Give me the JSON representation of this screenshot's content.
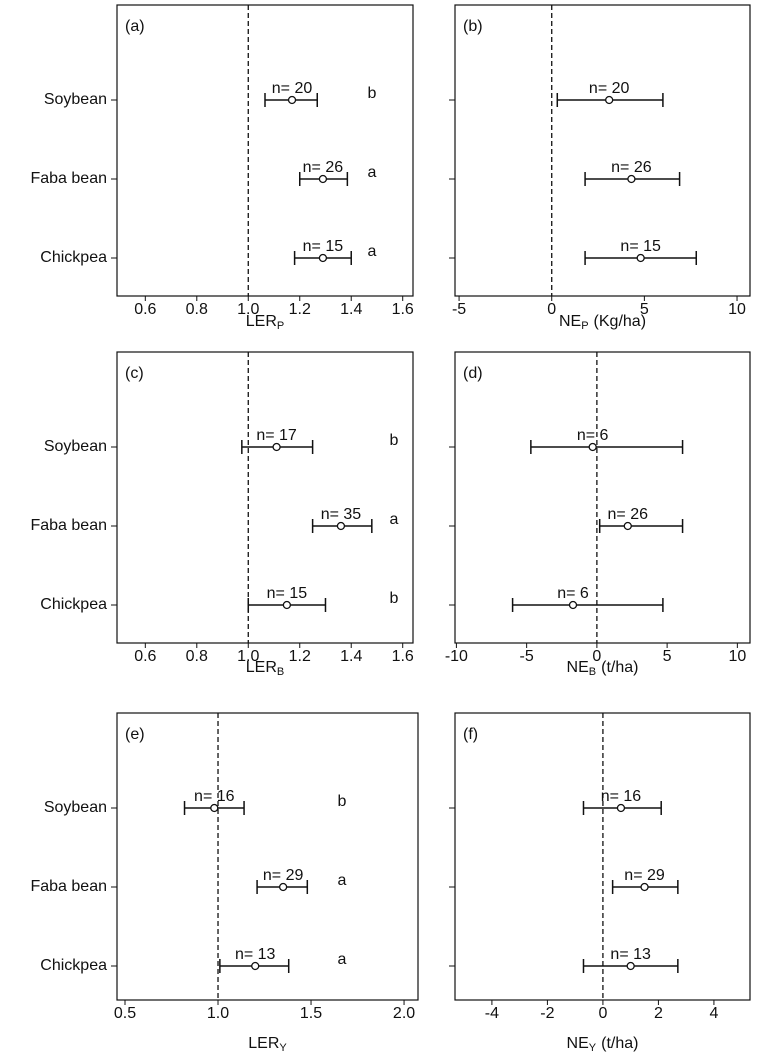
{
  "chart_data": [
    {
      "type": "errorbar",
      "panel_label": "(a)",
      "categories": [
        "Soybean",
        "Faba bean",
        "Chickpea"
      ],
      "values": [
        1.17,
        1.29,
        1.29
      ],
      "lower": [
        1.065,
        1.2,
        1.18
      ],
      "upper": [
        1.268,
        1.385,
        1.4
      ],
      "n_labels": [
        "n= 20",
        "n= 26",
        "n= 15"
      ],
      "letters": [
        "b",
        "a",
        "a"
      ],
      "xlabel": "LER",
      "xlabel_sub": "P",
      "xlim": [
        0.49,
        1.64
      ],
      "xticks": [
        0.6,
        0.8,
        {
          "value": 1,
          "label": "1.0"
        },
        1.2,
        1.4,
        1.6
      ],
      "ref_line": 1
    },
    {
      "type": "errorbar",
      "panel_label": "(b)",
      "values": [
        3.1,
        4.3,
        4.8
      ],
      "lower": [
        0.3,
        1.8,
        1.8
      ],
      "upper": [
        6.0,
        6.9,
        7.8
      ],
      "n_labels": [
        "n= 20",
        "n= 26",
        "n= 15"
      ],
      "xlabel": "NE",
      "xlabel_sub": "P",
      "xlabel_unit": "(Kg/ha)",
      "xlim": [
        -5.22,
        10.7
      ],
      "xticks": [
        -5,
        0,
        5,
        10
      ],
      "ref_line": 0
    },
    {
      "type": "errorbar",
      "panel_label": "(c)",
      "categories": [
        "Soybean",
        "Faba bean",
        "Chickpea"
      ],
      "values": [
        1.11,
        1.36,
        1.15
      ],
      "lower": [
        0.975,
        1.25,
        1.0
      ],
      "upper": [
        1.25,
        1.48,
        1.3
      ],
      "n_labels": [
        "n= 17",
        "n= 35",
        "n= 15"
      ],
      "letters": [
        "b",
        "a",
        "b"
      ],
      "xlabel": "LER",
      "xlabel_sub": "B",
      "xlim": [
        0.49,
        1.64
      ],
      "xticks": [
        0.6,
        0.8,
        {
          "value": 1,
          "label": "1.0"
        },
        1.2,
        1.4,
        1.6
      ],
      "ref_line": 1
    },
    {
      "type": "errorbar",
      "panel_label": "(d)",
      "values": [
        -0.3,
        2.2,
        -1.7
      ],
      "lower": [
        -4.7,
        0.2,
        -6.0
      ],
      "upper": [
        6.1,
        6.1,
        4.7
      ],
      "n_labels": [
        "n= 6",
        "n= 26",
        "n= 6"
      ],
      "xlabel": "NE",
      "xlabel_sub": "B",
      "xlabel_unit": "(t/ha)",
      "xlim": [
        -10.1,
        10.9
      ],
      "xticks": [
        -10,
        -5,
        0,
        5,
        10
      ],
      "ref_line": 0
    },
    {
      "type": "errorbar",
      "panel_label": "(e)",
      "categories": [
        "Soybean",
        "Faba bean",
        "Chickpea"
      ],
      "values": [
        0.98,
        1.35,
        1.2
      ],
      "lower": [
        0.82,
        1.21,
        1.01
      ],
      "upper": [
        1.14,
        1.48,
        1.38
      ],
      "n_labels": [
        "n= 16",
        "n= 29",
        "n= 13"
      ],
      "letters": [
        "b",
        "a",
        "a"
      ],
      "xlabel": "LER",
      "xlabel_sub": "Y",
      "xlim": [
        0.457,
        2.075
      ],
      "xticks": [
        0.5,
        {
          "value": 1,
          "label": "1.0"
        },
        1.5,
        {
          "value": 2,
          "label": "2.0"
        }
      ],
      "ref_line": 1
    },
    {
      "type": "errorbar",
      "panel_label": "(f)",
      "values": [
        0.65,
        1.5,
        1.0
      ],
      "lower": [
        -0.7,
        0.35,
        -0.7
      ],
      "upper": [
        2.1,
        2.7,
        2.7
      ],
      "n_labels": [
        "n= 16",
        "n= 29",
        "n= 13"
      ],
      "xlabel": "NE",
      "xlabel_sub": "Y",
      "xlabel_unit": "(t/ha)",
      "xlim": [
        -5.33,
        5.3
      ],
      "xticks": [
        -4,
        -2,
        0,
        2,
        4
      ],
      "ref_line": 0
    }
  ]
}
